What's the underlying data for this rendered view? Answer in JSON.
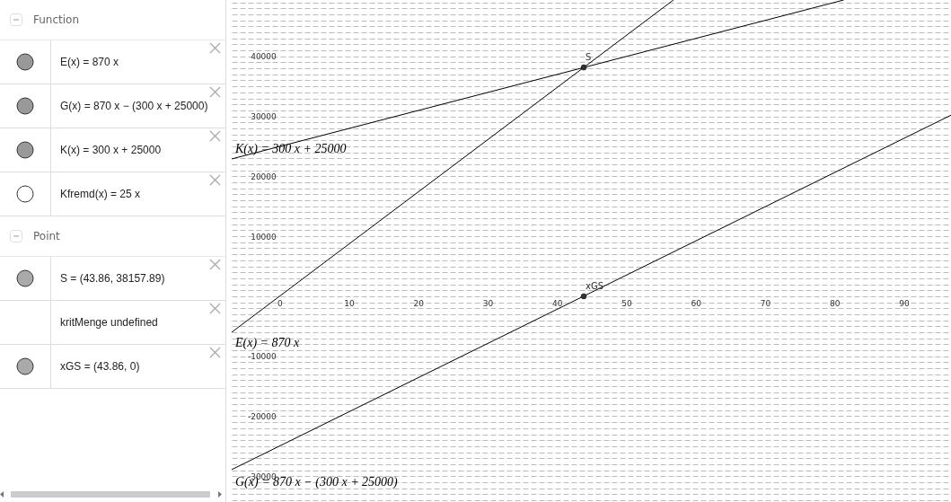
{
  "chart_data": {
    "type": "line",
    "xlim": [
      -6.9,
      96.8
    ],
    "ylim": [
      -34300,
      49400
    ],
    "xticks": [
      0,
      10,
      20,
      30,
      40,
      50,
      60,
      70,
      80,
      90
    ],
    "yticks": [
      {
        "value": -34000,
        "label": null
      },
      {
        "value": -33000,
        "label": null
      },
      {
        "value": -32000,
        "label": null
      },
      {
        "value": -31000,
        "label": null
      },
      -30000,
      {
        "value": -29000,
        "label": null
      },
      {
        "value": -28000,
        "label": null
      },
      {
        "value": -27000,
        "label": null
      },
      {
        "value": -26000,
        "label": null
      },
      {
        "value": -25000,
        "label": null
      },
      {
        "value": -24000,
        "label": null
      },
      {
        "value": -23000,
        "label": null
      },
      {
        "value": -22000,
        "label": null
      },
      {
        "value": -21000,
        "label": null
      },
      -20000,
      {
        "value": -19000,
        "label": null
      },
      {
        "value": -18000,
        "label": null
      },
      {
        "value": -17000,
        "label": null
      },
      {
        "value": -16000,
        "label": null
      },
      {
        "value": -15000,
        "label": null
      },
      {
        "value": -14000,
        "label": null
      },
      {
        "value": -13000,
        "label": null
      },
      {
        "value": -12000,
        "label": null
      },
      {
        "value": -11000,
        "label": null
      },
      -10000,
      {
        "value": -9000,
        "label": null
      },
      {
        "value": -8000,
        "label": null
      },
      {
        "value": -7000,
        "label": null
      },
      {
        "value": -6000,
        "label": null
      },
      {
        "value": -5000,
        "label": null
      },
      {
        "value": -4000,
        "label": null
      },
      {
        "value": -3000,
        "label": null
      },
      {
        "value": -2000,
        "label": null
      },
      {
        "value": -1000,
        "label": null
      },
      {
        "value": 0,
        "label": null
      },
      {
        "value": 1000,
        "label": null
      },
      {
        "value": 2000,
        "label": null
      },
      {
        "value": 3000,
        "label": null
      },
      {
        "value": 4000,
        "label": null
      },
      {
        "value": 5000,
        "label": null
      },
      {
        "value": 6000,
        "label": null
      },
      {
        "value": 7000,
        "label": null
      },
      {
        "value": 8000,
        "label": null
      },
      {
        "value": 9000,
        "label": null
      },
      10000,
      {
        "value": 11000,
        "label": null
      },
      {
        "value": 12000,
        "label": null
      },
      {
        "value": 13000,
        "label": null
      },
      {
        "value": 14000,
        "label": null
      },
      {
        "value": 15000,
        "label": null
      },
      {
        "value": 16000,
        "label": null
      },
      {
        "value": 17000,
        "label": null
      },
      {
        "value": 18000,
        "label": null
      },
      {
        "value": 19000,
        "label": null
      },
      20000,
      {
        "value": 21000,
        "label": null
      },
      {
        "value": 22000,
        "label": null
      },
      {
        "value": 23000,
        "label": null
      },
      {
        "value": 24000,
        "label": null
      },
      {
        "value": 25000,
        "label": null
      },
      {
        "value": 26000,
        "label": null
      },
      {
        "value": 27000,
        "label": null
      },
      {
        "value": 28000,
        "label": null
      },
      {
        "value": 29000,
        "label": null
      },
      30000,
      {
        "value": 31000,
        "label": null
      },
      {
        "value": 32000,
        "label": null
      },
      {
        "value": 33000,
        "label": null
      },
      {
        "value": 34000,
        "label": null
      },
      {
        "value": 35000,
        "label": null
      },
      {
        "value": 36000,
        "label": null
      },
      {
        "value": 37000,
        "label": null
      },
      {
        "value": 38000,
        "label": null
      },
      {
        "value": 39000,
        "label": null
      },
      40000,
      {
        "value": 41000,
        "label": null
      },
      {
        "value": 42000,
        "label": null
      },
      {
        "value": 43000,
        "label": null
      },
      {
        "value": 44000,
        "label": null
      },
      {
        "value": 45000,
        "label": null
      },
      {
        "value": 46000,
        "label": null
      },
      {
        "value": 47000,
        "label": null
      },
      {
        "value": 48000,
        "label": null
      },
      {
        "value": 49000,
        "label": null
      }
    ],
    "grid": "y",
    "line_style": "solid",
    "marker": "none",
    "series": [
      {
        "name": "K(x) = 300 x + 25000",
        "color": "#000000",
        "x": [
          -6.9,
          81.33
        ],
        "values": [
          22900,
          49400
        ]
      },
      {
        "name": "E(x) = 870 x",
        "color": "#000000",
        "x": [
          -6.9,
          56.78
        ],
        "values": [
          -6000,
          49400
        ]
      },
      {
        "name": "G(x) = 870 x − (300 x + 25000)",
        "color": "#000000",
        "x": [
          -6.9,
          96.8
        ],
        "values": [
          -28900,
          30200
        ]
      },
      {
        "name": "S",
        "type": "scatter",
        "marker": "circle",
        "color": "#333333",
        "x": [
          43.86
        ],
        "values": [
          38157.89
        ]
      },
      {
        "name": "xGS",
        "type": "scatter",
        "marker": "circle",
        "color": "#333333",
        "x": [
          43.86
        ],
        "values": [
          0
        ]
      }
    ],
    "annotations": [
      "Function",
      "E(x) = 870 x",
      "G(x) = 870 x − (300 x + 25000)",
      "K(x) = 300 x + 25000",
      "Kfremd(x) = 25 x",
      "Point",
      "S = (43.86, 38157.89)",
      "kritMenge undefined",
      "xGS = (43.86, 0)"
    ]
  }
}
